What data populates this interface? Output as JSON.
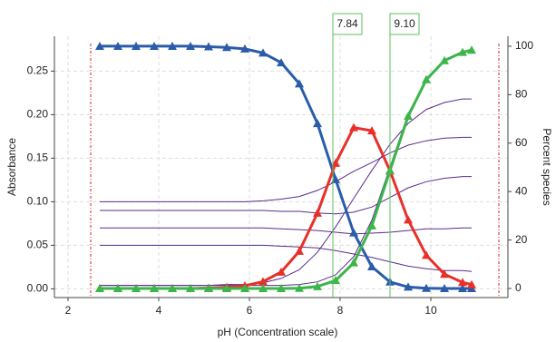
{
  "chart_data": {
    "type": "line",
    "xlabel": "pH (Concentration scale)",
    "ylabel": "Absorbance",
    "y2label": "Percent species",
    "x": [
      2.7,
      3.1,
      3.5,
      3.9,
      4.3,
      4.7,
      5.1,
      5.5,
      5.9,
      6.3,
      6.7,
      7.1,
      7.5,
      7.9,
      8.3,
      8.7,
      9.1,
      9.5,
      9.9,
      10.3,
      10.7,
      10.9
    ],
    "series": [
      {
        "color": "#5b2a8c",
        "values": [
          0.004,
          0.004,
          0.004,
          0.004,
          0.004,
          0.004,
          0.004,
          0.004,
          0.004,
          0.004,
          0.004,
          0.005,
          0.008,
          0.016,
          0.037,
          0.079,
          0.14,
          0.201,
          0.241,
          0.262,
          0.271,
          0.274
        ]
      },
      {
        "color": "#5b2a8c",
        "values": [
          0.004,
          0.004,
          0.004,
          0.004,
          0.004,
          0.004,
          0.004,
          0.005,
          0.005,
          0.007,
          0.012,
          0.022,
          0.042,
          0.071,
          0.104,
          0.136,
          0.166,
          0.19,
          0.206,
          0.214,
          0.218,
          0.218
        ]
      },
      {
        "color": "#5b2a8c",
        "values": [
          0.1,
          0.1,
          0.1,
          0.1,
          0.1,
          0.1,
          0.1,
          0.1,
          0.1,
          0.101,
          0.103,
          0.106,
          0.113,
          0.123,
          0.135,
          0.145,
          0.156,
          0.165,
          0.17,
          0.173,
          0.174,
          0.174
        ]
      },
      {
        "color": "#5b2a8c",
        "values": [
          0.09,
          0.09,
          0.09,
          0.09,
          0.09,
          0.09,
          0.09,
          0.09,
          0.09,
          0.09,
          0.089,
          0.089,
          0.087,
          0.086,
          0.088,
          0.094,
          0.105,
          0.116,
          0.123,
          0.127,
          0.129,
          0.129
        ]
      },
      {
        "color": "#5b2a8c",
        "values": [
          0.07,
          0.07,
          0.07,
          0.07,
          0.07,
          0.07,
          0.07,
          0.07,
          0.07,
          0.07,
          0.069,
          0.068,
          0.067,
          0.065,
          0.063,
          0.064,
          0.065,
          0.067,
          0.069,
          0.069,
          0.07,
          0.07
        ]
      },
      {
        "color": "#5b2a8c",
        "values": [
          0.05,
          0.05,
          0.05,
          0.05,
          0.05,
          0.05,
          0.05,
          0.05,
          0.05,
          0.05,
          0.049,
          0.048,
          0.047,
          0.044,
          0.04,
          0.036,
          0.031,
          0.026,
          0.023,
          0.021,
          0.021,
          0.02
        ]
      },
      {
        "color": "#2a5caa",
        "axis": "y2",
        "marker": "triangle",
        "values": [
          100,
          100,
          100,
          100,
          100,
          100,
          99.8,
          99.5,
          98.9,
          97.2,
          93.2,
          84.5,
          68.1,
          45.0,
          23.0,
          9.0,
          2.7,
          0.6,
          0.1,
          0,
          0,
          0
        ]
      },
      {
        "color": "#e8302a",
        "axis": "y2",
        "marker": "triangle",
        "values": [
          0,
          0,
          0,
          0,
          0,
          0,
          0.2,
          0.5,
          1.1,
          2.8,
          6.8,
          15.4,
          31.1,
          51.7,
          66.4,
          65.1,
          48.6,
          28.3,
          13.7,
          5.9,
          2.5,
          1.6
        ]
      },
      {
        "color": "#3cb54a",
        "axis": "y2",
        "marker": "triangle",
        "values": [
          0,
          0,
          0,
          0,
          0,
          0,
          0,
          0,
          0,
          0,
          0,
          0.1,
          0.8,
          3.3,
          10.6,
          25.9,
          48.7,
          71.1,
          86.2,
          94.1,
          97.5,
          98.4
        ]
      }
    ],
    "xlim": [
      1.7,
      11.7
    ],
    "xticks": [
      2,
      4,
      6,
      8,
      10
    ],
    "ylim": [
      -0.01,
      0.29
    ],
    "yticks": [
      {
        "value": 0,
        "label": "0.00"
      },
      {
        "value": 0.05,
        "label": "0.05"
      },
      {
        "value": 0.1,
        "label": "0.10"
      },
      {
        "value": 0.15,
        "label": "0.15"
      },
      {
        "value": 0.2,
        "label": "0.20"
      },
      {
        "value": 0.25,
        "label": "0.25"
      }
    ],
    "y2lim": [
      -3.75,
      104.1
    ],
    "y2ticks": [
      0,
      20,
      40,
      60,
      80,
      100
    ],
    "grid": true,
    "vlines": [
      {
        "value": 7.84,
        "label": "7.84"
      },
      {
        "value": 9.1,
        "label": "9.10"
      }
    ],
    "vline_color": "#5cc05c",
    "limits": [
      2.5,
      11.5
    ],
    "limit_color": "#d62020"
  }
}
